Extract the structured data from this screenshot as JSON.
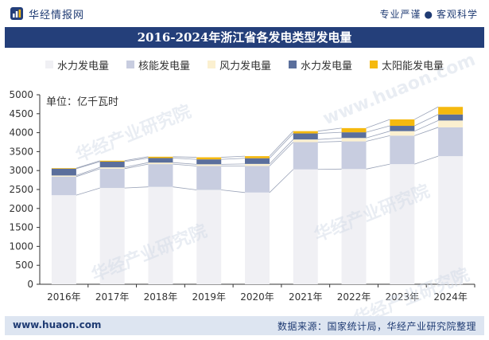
{
  "brand": {
    "name": "华经情报网"
  },
  "slogan": {
    "left": "专业严谨",
    "right": "客观科学"
  },
  "watermark": {
    "text": "华经产业研究院",
    "url": "www.huaon.com"
  },
  "chart_data": {
    "type": "bar",
    "stacked": true,
    "title": "2016-2024年浙江省各发电类型发电量",
    "unit_label": "单位：亿千瓦时",
    "categories": [
      "2016年",
      "2017年",
      "2018年",
      "2019年",
      "2020年",
      "2021年",
      "2022年",
      "2023年",
      "2024年"
    ],
    "ylim": [
      0,
      5000
    ],
    "yticks": [
      "0",
      "500",
      "1000",
      "1500",
      "2000",
      "2500",
      "3000",
      "3500",
      "4000",
      "4500",
      "5000"
    ],
    "grid": false,
    "legend_position": "top-center",
    "series": [
      {
        "name": "水力发电量",
        "color": "#f0f0f4",
        "values": [
          2350,
          2540,
          2570,
          2490,
          2420,
          3030,
          3040,
          3170,
          3380
        ]
      },
      {
        "name": "核能发电量",
        "color": "#c8cde0",
        "values": [
          490,
          510,
          600,
          630,
          700,
          720,
          730,
          750,
          760
        ]
      },
      {
        "name": "风力发电量",
        "color": "#fbf0d0",
        "values": [
          30,
          35,
          40,
          45,
          55,
          70,
          90,
          120,
          180
        ]
      },
      {
        "name": "水力发电量",
        "color": "#5b6f9c",
        "values": [
          180,
          150,
          120,
          130,
          150,
          160,
          150,
          140,
          160
        ]
      },
      {
        "name": "太阳能发电量",
        "color": "#f5b90f",
        "values": [
          15,
          25,
          35,
          55,
          55,
          60,
          110,
          170,
          200
        ]
      }
    ]
  },
  "footer": {
    "url": "www.huaon.com",
    "source": "数据来源：国家统计局，华经产业研究院整理"
  }
}
